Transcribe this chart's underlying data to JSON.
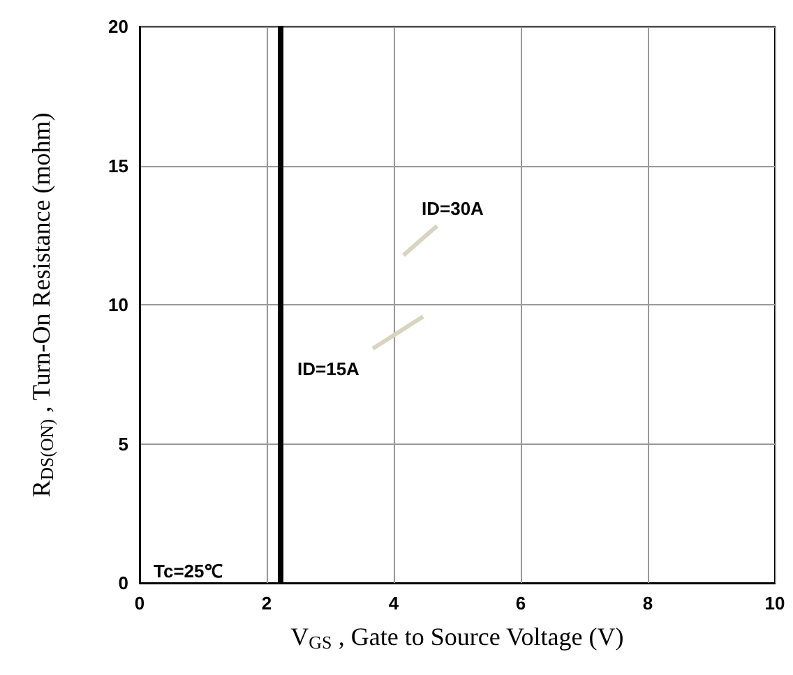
{
  "chart_data": {
    "type": "line",
    "xlabel": "V$_{GS}$ , Gate to Source Voltage (V)",
    "ylabel": "R$_{DS(ON)}$ , Turn-On Resistance (mohm)",
    "x": [
      2.22,
      2.22
    ],
    "series": [
      {
        "color": "#000000",
        "values": [
          0,
          20
        ]
      }
    ],
    "xlim": [
      0,
      10
    ],
    "xticks": [
      0,
      2,
      4,
      6,
      8,
      10
    ],
    "ylim": [
      0,
      20
    ],
    "yticks": [
      0,
      5,
      10,
      15,
      20
    ],
    "grid": true,
    "marker": "none",
    "line_style": "solid",
    "annotations": [
      "ID=30A",
      "ID=15A",
      "Tc=25℃"
    ]
  }
}
